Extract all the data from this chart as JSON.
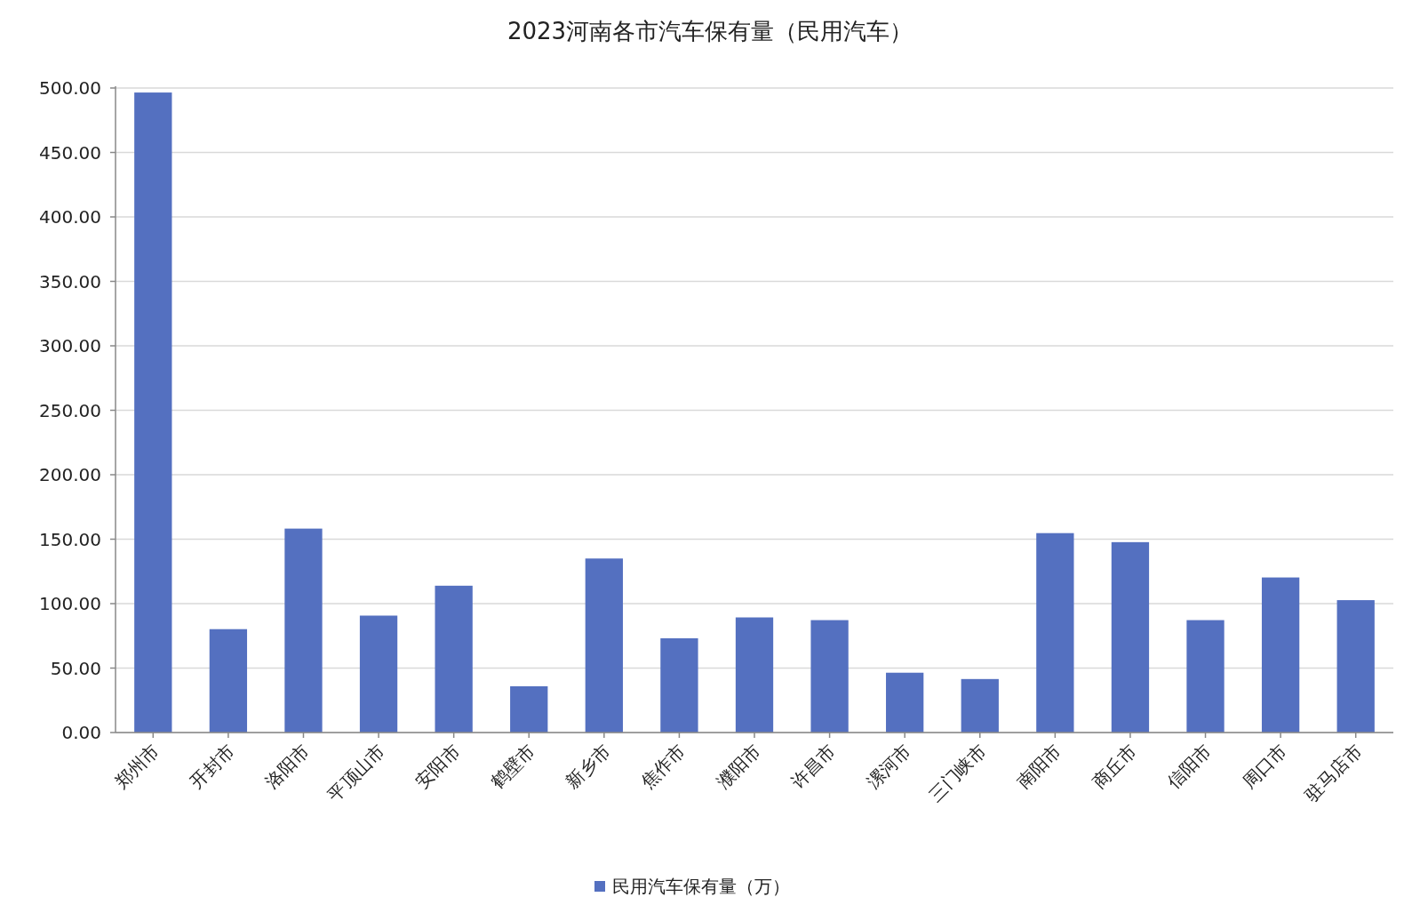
{
  "chart_data": {
    "type": "bar",
    "title": "2023河南各市汽车保有量（民用汽车）",
    "categories": [
      "郑州市",
      "开封市",
      "洛阳市",
      "平顶山市",
      "安阳市",
      "鹤壁市",
      "新乡市",
      "焦作市",
      "濮阳市",
      "许昌市",
      "漯河市",
      "三门峡市",
      "南阳市",
      "商丘市",
      "信阳市",
      "周口市",
      "驻马店市"
    ],
    "series": [
      {
        "name": "民用汽车保有量（万）",
        "color": "#5470c0",
        "values": [
          496.5,
          80.2,
          158.2,
          90.7,
          113.9,
          35.9,
          135.0,
          73.1,
          89.3,
          87.2,
          46.4,
          41.5,
          154.7,
          147.7,
          87.2,
          120.3,
          102.7
        ]
      }
    ],
    "ylim": [
      0,
      500
    ],
    "yticks": [
      {
        "value": 0,
        "label": "0.00"
      },
      {
        "value": 50,
        "label": "50.00"
      },
      {
        "value": 100,
        "label": "100.00"
      },
      {
        "value": 150,
        "label": "150.00"
      },
      {
        "value": 200,
        "label": "200.00"
      },
      {
        "value": 250,
        "label": "250.00"
      },
      {
        "value": 300,
        "label": "300.00"
      },
      {
        "value": 350,
        "label": "350.00"
      },
      {
        "value": 400,
        "label": "400.00"
      },
      {
        "value": 450,
        "label": "450.00"
      },
      {
        "value": 500,
        "label": "500.00"
      }
    ],
    "grid": "y",
    "legend": "bottom"
  }
}
